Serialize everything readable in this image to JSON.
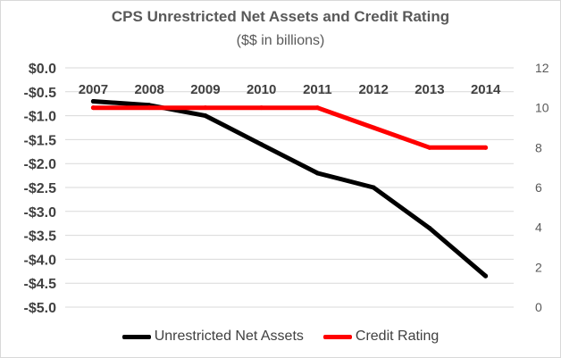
{
  "chart_data": {
    "type": "line",
    "title": "CPS Unrestricted Net Assets and Credit Rating",
    "subtitle": "($$ in billions)",
    "categories": [
      "2007",
      "2008",
      "2009",
      "2010",
      "2011",
      "2012",
      "2013",
      "2014"
    ],
    "left_axis": {
      "ylim": [
        -5.0,
        0.0
      ],
      "ticks": [
        0.0,
        -0.5,
        -1.0,
        -1.5,
        -2.0,
        -2.5,
        -3.0,
        -3.5,
        -4.0,
        -4.5,
        -5.0
      ],
      "tick_labels": [
        "$0.0",
        "-$0.5",
        "-$1.0",
        "-$1.5",
        "-$2.0",
        "-$2.5",
        "-$3.0",
        "-$3.5",
        "-$4.0",
        "-$4.5",
        "-$5.0"
      ]
    },
    "right_axis": {
      "ylim": [
        0,
        12
      ],
      "ticks": [
        12,
        10,
        8,
        6,
        4,
        2,
        0
      ],
      "tick_labels": [
        "12",
        "10",
        "8",
        "6",
        "4",
        "2",
        "0"
      ]
    },
    "grid": true,
    "legend_position": "bottom",
    "series": [
      {
        "name": "Unrestricted Net Assets",
        "axis": "left",
        "color": "#000000",
        "values": [
          -0.7,
          -0.78,
          -1.0,
          -1.6,
          -2.2,
          -2.5,
          -3.35,
          -4.35
        ]
      },
      {
        "name": "Credit Rating",
        "axis": "right",
        "color": "#ff0000",
        "values": [
          10,
          10,
          10,
          10,
          10,
          9,
          8,
          8
        ]
      }
    ]
  }
}
